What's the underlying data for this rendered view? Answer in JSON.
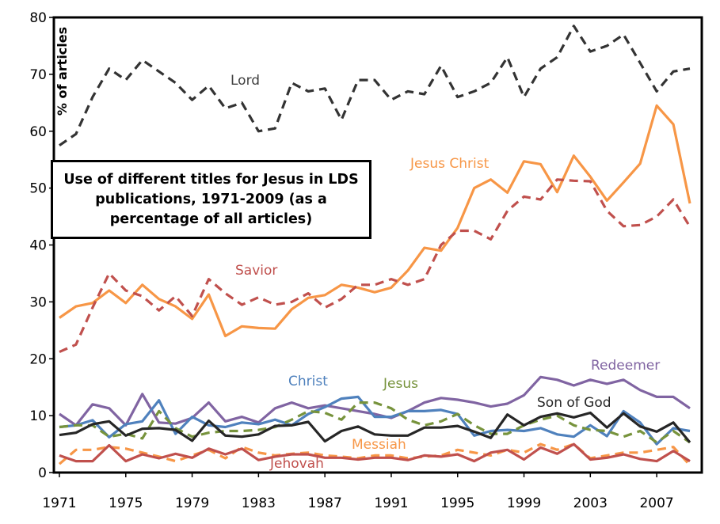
{
  "chart_data": {
    "type": "line",
    "title": "Use of different titles for Jesus in LDS publications, 1971-2009 (as a percentage of all articles)",
    "ylabel": "% of articles",
    "xlabel": "",
    "ylim": [
      0,
      80
    ],
    "yticks": [
      0,
      10,
      20,
      30,
      40,
      50,
      60,
      70,
      80
    ],
    "xlim": [
      1971,
      2009
    ],
    "xticks": [
      1971,
      1975,
      1979,
      1983,
      1987,
      1991,
      1995,
      1999,
      2003,
      2007
    ],
    "grid": false,
    "legend": "inline labels",
    "x": [
      1971,
      1972,
      1973,
      1974,
      1975,
      1976,
      1977,
      1978,
      1979,
      1980,
      1981,
      1982,
      1983,
      1984,
      1985,
      1986,
      1987,
      1988,
      1989,
      1990,
      1991,
      1992,
      1993,
      1994,
      1995,
      1996,
      1997,
      1998,
      1999,
      2000,
      2001,
      2002,
      2003,
      2004,
      2005,
      2006,
      2007,
      2008,
      2009
    ],
    "series": [
      {
        "name": "Lord",
        "color": "#333333",
        "dash": true,
        "values": [
          57.5,
          59.5,
          66,
          71,
          69,
          72.5,
          70.5,
          68.5,
          65.5,
          68,
          64,
          65,
          60,
          60.5,
          68.5,
          67,
          67.5,
          62,
          69,
          69,
          65.5,
          67,
          66.5,
          71.5,
          66,
          67,
          68.5,
          73,
          66,
          71,
          73,
          78.5,
          74,
          75,
          77,
          72,
          67,
          70.5,
          71
        ]
      },
      {
        "name": "Jesus Christ",
        "color": "#f79646",
        "dash": false,
        "values": [
          27.2,
          29.2,
          29.8,
          32,
          29.8,
          33,
          30.5,
          29.2,
          27,
          31.3,
          24,
          25.7,
          25.4,
          25.3,
          28.7,
          30.7,
          31.2,
          33,
          32.5,
          31.7,
          32.5,
          35.5,
          39.5,
          39,
          43,
          50,
          51.5,
          49.2,
          54.7,
          54.2,
          49.3,
          55.7,
          52,
          47.8,
          51,
          54.3,
          64.5,
          61.2,
          47.3
        ]
      },
      {
        "name": "Savior",
        "color": "#c0504d",
        "dash": true,
        "values": [
          21.2,
          22.5,
          29,
          35,
          32,
          31,
          28.5,
          31,
          27.5,
          34,
          31.5,
          29.5,
          30.8,
          29.5,
          30,
          31.5,
          29,
          30.5,
          33,
          33,
          34,
          33,
          34,
          40,
          42.5,
          42.5,
          41,
          46,
          48.5,
          48,
          51.5,
          51.3,
          51.2,
          46,
          43.3,
          43.5,
          45,
          48,
          43.2
        ]
      },
      {
        "name": "Redeemer",
        "color": "#8064a2",
        "dash": false,
        "values": [
          10.3,
          8.3,
          12,
          11.3,
          8.3,
          13.8,
          8.8,
          8.6,
          9.6,
          12.3,
          9,
          9.8,
          8.8,
          11.3,
          12.3,
          11.3,
          11.8,
          11.3,
          10.8,
          10.3,
          9.6,
          10.8,
          12.3,
          13.1,
          12.8,
          12.3,
          11.6,
          12.1,
          13.6,
          16.8,
          16.3,
          15.3,
          16.3,
          15.6,
          16.3,
          14.5,
          13.3,
          13.3,
          11.3
        ]
      },
      {
        "name": "Christ",
        "color": "#4f81bd",
        "dash": false,
        "values": [
          8,
          8.3,
          9.2,
          6.2,
          8.5,
          9,
          12.7,
          6.8,
          9.8,
          8.3,
          8,
          8.8,
          8.5,
          9.3,
          8.3,
          10.3,
          11.5,
          13,
          13.3,
          9.8,
          9.8,
          10.8,
          10.8,
          11,
          10.3,
          6.5,
          7.3,
          7.5,
          7.3,
          7.8,
          6.7,
          6.3,
          8.3,
          6.4,
          10.8,
          8.8,
          5,
          7.8,
          7.3
        ]
      },
      {
        "name": "Jesus",
        "color": "#77933c",
        "dash": true,
        "values": [
          8,
          8.3,
          8.3,
          6.3,
          6.8,
          6,
          10.8,
          7.8,
          6.3,
          7,
          7.3,
          7.3,
          7.5,
          8,
          9.3,
          10.8,
          10.5,
          9.3,
          12.3,
          12.3,
          11.3,
          9.3,
          8.3,
          9,
          10.3,
          8.3,
          6.8,
          6.8,
          8.3,
          9.3,
          10,
          8.3,
          7.5,
          7.3,
          6.3,
          7.3,
          5.3,
          7.3,
          5.3
        ]
      },
      {
        "name": "Son of God",
        "color": "#262626",
        "dash": false,
        "values": [
          6.6,
          7,
          8.5,
          9,
          6.5,
          7.7,
          7.8,
          7.5,
          5.6,
          9.1,
          6.5,
          6.3,
          6.7,
          8.2,
          8.3,
          8.9,
          5.5,
          7.3,
          8.1,
          6.7,
          6.5,
          6.5,
          7.9,
          7.9,
          8.2,
          7.2,
          6.1,
          10.2,
          8.3,
          9.8,
          10.4,
          9.7,
          10.5,
          7.9,
          10.4,
          8.1,
          7.2,
          8.8,
          5.3
        ]
      },
      {
        "name": "Messiah",
        "color": "#f79646",
        "dash": true,
        "values": [
          1.5,
          4,
          4,
          4.5,
          4.2,
          3.5,
          2.8,
          2,
          3,
          4,
          2.5,
          4.5,
          3.5,
          3,
          3.3,
          3.5,
          3,
          2.8,
          2.5,
          3,
          3,
          2.5,
          2.8,
          3,
          4,
          3.5,
          3,
          4,
          3.5,
          5,
          4,
          5,
          2.5,
          3,
          3.5,
          3.5,
          4,
          4.5,
          1.3
        ]
      },
      {
        "name": "Jehovah",
        "color": "#c0504d",
        "dash": false,
        "values": [
          3,
          2,
          2,
          4.8,
          2,
          3.2,
          2.5,
          3.3,
          2.6,
          4.2,
          3.2,
          4.2,
          2.2,
          2.8,
          3.2,
          3.2,
          2.6,
          2.6,
          2.3,
          2.6,
          2.6,
          2.2,
          3,
          2.8,
          3.2,
          2,
          3.5,
          4,
          2.3,
          4.4,
          3.3,
          5,
          2.3,
          2.6,
          3.2,
          2.4,
          2,
          3.8,
          2
        ]
      }
    ]
  }
}
